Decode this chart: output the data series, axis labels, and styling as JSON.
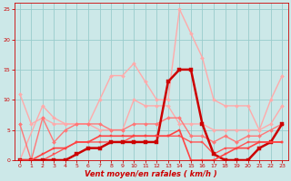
{
  "xlabel": "Vent moyen/en rafales ( km/h )",
  "xlim": [
    -0.5,
    23.5
  ],
  "ylim": [
    0,
    26
  ],
  "yticks": [
    0,
    5,
    10,
    15,
    20,
    25
  ],
  "xticks": [
    0,
    1,
    2,
    3,
    4,
    5,
    6,
    7,
    8,
    9,
    10,
    11,
    12,
    13,
    14,
    15,
    16,
    17,
    18,
    19,
    20,
    21,
    22,
    23
  ],
  "bg_color": "#cce8e8",
  "grid_color": "#99cccc",
  "series": [
    {
      "x": [
        0,
        1,
        2,
        3,
        4,
        5,
        6,
        7,
        8,
        9,
        10,
        11,
        12,
        13,
        14,
        15,
        16,
        17,
        18,
        19,
        20,
        21,
        22,
        23
      ],
      "y": [
        11,
        6,
        7,
        6,
        6,
        6,
        6,
        5,
        5,
        5,
        10,
        9,
        9,
        9,
        6,
        6,
        6,
        5,
        5,
        5,
        5,
        5,
        6,
        9
      ],
      "color": "#ffaaaa",
      "lw": 1.0,
      "marker": "D",
      "ms": 2.0
    },
    {
      "x": [
        0,
        2,
        3,
        4,
        5,
        6,
        7,
        8,
        9,
        10,
        11,
        12,
        13,
        14,
        15,
        16,
        17,
        18,
        19,
        20,
        21,
        22,
        23
      ],
      "y": [
        0,
        9,
        7,
        6,
        6,
        6,
        10,
        14,
        14,
        16,
        13,
        10,
        10,
        25,
        21,
        17,
        10,
        9,
        9,
        9,
        5,
        10,
        14
      ],
      "color": "#ffaaaa",
      "lw": 1.0,
      "marker": "D",
      "ms": 2.0
    },
    {
      "x": [
        0,
        1,
        2,
        3,
        4,
        5,
        6,
        7,
        8,
        9,
        10,
        11,
        12,
        13,
        14,
        15,
        16,
        17,
        18,
        19,
        20,
        21,
        22,
        23
      ],
      "y": [
        6,
        0,
        7,
        3,
        5,
        6,
        6,
        6,
        5,
        5,
        6,
        6,
        6,
        7,
        7,
        4,
        4,
        3,
        4,
        3,
        4,
        4,
        5,
        6
      ],
      "color": "#ff7777",
      "lw": 1.0,
      "marker": "D",
      "ms": 2.0
    },
    {
      "x": [
        0,
        1,
        2,
        3,
        4,
        5,
        6,
        7,
        8,
        9,
        10,
        11,
        12,
        13,
        14,
        15,
        16,
        17,
        18,
        19,
        20,
        21,
        22,
        23
      ],
      "y": [
        0,
        0,
        0,
        1,
        2,
        3,
        3,
        3,
        3,
        3,
        4,
        4,
        4,
        4,
        4,
        3,
        3,
        1,
        2,
        2,
        3,
        3,
        3,
        3
      ],
      "color": "#ff5555",
      "lw": 1.0,
      "marker": "s",
      "ms": 2.0
    },
    {
      "x": [
        0,
        1,
        2,
        3,
        4,
        5,
        6,
        7,
        8,
        9,
        10,
        11,
        12,
        13,
        14,
        15,
        16,
        17,
        18,
        19,
        20,
        21,
        22,
        23
      ],
      "y": [
        0,
        0,
        0,
        0,
        0,
        1,
        2,
        2,
        3,
        3,
        3,
        3,
        3,
        13,
        15,
        15,
        6,
        1,
        0,
        0,
        0,
        2,
        3,
        6
      ],
      "color": "#cc0000",
      "lw": 1.8,
      "marker": "s",
      "ms": 3.0
    },
    {
      "x": [
        0,
        1,
        2,
        3,
        4,
        5,
        6,
        7,
        8,
        9,
        10,
        11,
        12,
        13,
        14,
        15,
        16,
        17,
        18,
        19,
        20,
        21,
        22,
        23
      ],
      "y": [
        0,
        0,
        1,
        2,
        2,
        3,
        3,
        4,
        4,
        4,
        4,
        4,
        4,
        4,
        5,
        0,
        0,
        0,
        1,
        2,
        2,
        3,
        3,
        3
      ],
      "color": "#ff4444",
      "lw": 1.2,
      "marker": "s",
      "ms": 2.0
    }
  ]
}
